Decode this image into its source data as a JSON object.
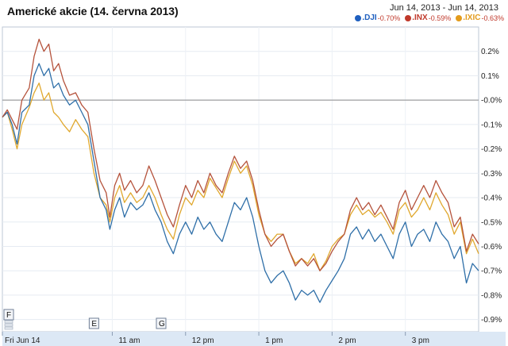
{
  "title": "Americké akcie (14. června 2013)",
  "date_range": "Jun 14, 2013  -  Jun 14, 2013",
  "legend": [
    {
      "symbol": ".DJI",
      "change": "-0.70%",
      "color": "#1f5fbf"
    },
    {
      "symbol": ".INX",
      "change": "-0.59%",
      "color": "#c0392b"
    },
    {
      "symbol": ".IXIC",
      "change": "-0.63%",
      "color": "#e39b1c"
    }
  ],
  "markers": [
    {
      "label": "F",
      "x": 0
    },
    {
      "label": "E",
      "x": 75
    },
    {
      "label": "G",
      "x": 130
    }
  ],
  "chart_data": {
    "type": "line",
    "title": "Americké akcie (14. června 2013)",
    "xlabel": "",
    "ylabel": "",
    "x_unit": "minutes after 9:30 am",
    "xlim": [
      0,
      390
    ],
    "ylim": [
      -0.95,
      0.3
    ],
    "y_ticks": [
      0.2,
      0.1,
      0.0,
      -0.1,
      -0.2,
      -0.3,
      -0.4,
      -0.5,
      -0.6,
      -0.7,
      -0.8,
      -0.9
    ],
    "y_tick_labels": [
      "0.2%",
      "0.1%",
      "-0.0%",
      "-0.1%",
      "-0.2%",
      "-0.3%",
      "-0.4%",
      "-0.5%",
      "-0.6%",
      "-0.7%",
      "-0.8%",
      "-0.9%"
    ],
    "x_ticks": [
      0,
      90,
      150,
      210,
      270,
      330
    ],
    "x_tick_labels": [
      "Fri Jun 14",
      "11 am",
      "12 pm",
      "1 pm",
      "2 pm",
      "3 pm"
    ],
    "y_axis_side": "right",
    "grid": true,
    "legend_position": "top-right",
    "series": [
      {
        "name": ".DJI",
        "color": "#2f6fa8",
        "points": [
          [
            0,
            -0.07
          ],
          [
            4,
            -0.05
          ],
          [
            8,
            -0.1
          ],
          [
            12,
            -0.18
          ],
          [
            16,
            -0.05
          ],
          [
            22,
            -0.02
          ],
          [
            26,
            0.1
          ],
          [
            30,
            0.15
          ],
          [
            34,
            0.1
          ],
          [
            38,
            0.13
          ],
          [
            42,
            0.05
          ],
          [
            46,
            0.07
          ],
          [
            50,
            0.02
          ],
          [
            55,
            -0.02
          ],
          [
            60,
            0.0
          ],
          [
            65,
            -0.05
          ],
          [
            70,
            -0.1
          ],
          [
            75,
            -0.25
          ],
          [
            80,
            -0.4
          ],
          [
            85,
            -0.45
          ],
          [
            88,
            -0.53
          ],
          [
            92,
            -0.45
          ],
          [
            96,
            -0.4
          ],
          [
            100,
            -0.48
          ],
          [
            105,
            -0.42
          ],
          [
            110,
            -0.45
          ],
          [
            115,
            -0.43
          ],
          [
            120,
            -0.38
          ],
          [
            125,
            -0.45
          ],
          [
            130,
            -0.5
          ],
          [
            135,
            -0.58
          ],
          [
            140,
            -0.63
          ],
          [
            145,
            -0.55
          ],
          [
            150,
            -0.5
          ],
          [
            155,
            -0.55
          ],
          [
            160,
            -0.48
          ],
          [
            165,
            -0.53
          ],
          [
            170,
            -0.5
          ],
          [
            175,
            -0.55
          ],
          [
            180,
            -0.58
          ],
          [
            185,
            -0.5
          ],
          [
            190,
            -0.42
          ],
          [
            195,
            -0.45
          ],
          [
            200,
            -0.4
          ],
          [
            205,
            -0.48
          ],
          [
            210,
            -0.6
          ],
          [
            215,
            -0.7
          ],
          [
            220,
            -0.75
          ],
          [
            225,
            -0.72
          ],
          [
            230,
            -0.7
          ],
          [
            235,
            -0.75
          ],
          [
            240,
            -0.82
          ],
          [
            245,
            -0.78
          ],
          [
            250,
            -0.8
          ],
          [
            255,
            -0.78
          ],
          [
            260,
            -0.83
          ],
          [
            265,
            -0.78
          ],
          [
            270,
            -0.74
          ],
          [
            275,
            -0.7
          ],
          [
            280,
            -0.65
          ],
          [
            285,
            -0.55
          ],
          [
            290,
            -0.52
          ],
          [
            295,
            -0.57
          ],
          [
            300,
            -0.53
          ],
          [
            305,
            -0.58
          ],
          [
            310,
            -0.55
          ],
          [
            315,
            -0.6
          ],
          [
            320,
            -0.65
          ],
          [
            325,
            -0.55
          ],
          [
            330,
            -0.5
          ],
          [
            335,
            -0.6
          ],
          [
            340,
            -0.55
          ],
          [
            345,
            -0.53
          ],
          [
            350,
            -0.58
          ],
          [
            355,
            -0.5
          ],
          [
            360,
            -0.55
          ],
          [
            365,
            -0.58
          ],
          [
            370,
            -0.65
          ],
          [
            375,
            -0.6
          ],
          [
            380,
            -0.75
          ],
          [
            385,
            -0.67
          ],
          [
            390,
            -0.7
          ]
        ]
      },
      {
        "name": ".INX",
        "color": "#b5533c",
        "points": [
          [
            0,
            -0.07
          ],
          [
            4,
            -0.04
          ],
          [
            8,
            -0.08
          ],
          [
            12,
            -0.12
          ],
          [
            16,
            0.0
          ],
          [
            22,
            0.05
          ],
          [
            26,
            0.18
          ],
          [
            30,
            0.25
          ],
          [
            34,
            0.2
          ],
          [
            38,
            0.23
          ],
          [
            42,
            0.12
          ],
          [
            46,
            0.15
          ],
          [
            50,
            0.08
          ],
          [
            55,
            0.02
          ],
          [
            60,
            0.03
          ],
          [
            65,
            -0.02
          ],
          [
            70,
            -0.05
          ],
          [
            75,
            -0.2
          ],
          [
            80,
            -0.33
          ],
          [
            85,
            -0.38
          ],
          [
            88,
            -0.48
          ],
          [
            92,
            -0.35
          ],
          [
            96,
            -0.3
          ],
          [
            100,
            -0.37
          ],
          [
            105,
            -0.33
          ],
          [
            110,
            -0.38
          ],
          [
            115,
            -0.35
          ],
          [
            120,
            -0.27
          ],
          [
            125,
            -0.33
          ],
          [
            130,
            -0.4
          ],
          [
            135,
            -0.47
          ],
          [
            140,
            -0.52
          ],
          [
            145,
            -0.43
          ],
          [
            150,
            -0.35
          ],
          [
            155,
            -0.4
          ],
          [
            160,
            -0.33
          ],
          [
            165,
            -0.38
          ],
          [
            170,
            -0.3
          ],
          [
            175,
            -0.35
          ],
          [
            180,
            -0.38
          ],
          [
            185,
            -0.3
          ],
          [
            190,
            -0.23
          ],
          [
            195,
            -0.28
          ],
          [
            200,
            -0.25
          ],
          [
            205,
            -0.33
          ],
          [
            210,
            -0.45
          ],
          [
            215,
            -0.55
          ],
          [
            220,
            -0.6
          ],
          [
            225,
            -0.57
          ],
          [
            230,
            -0.55
          ],
          [
            235,
            -0.62
          ],
          [
            240,
            -0.68
          ],
          [
            245,
            -0.65
          ],
          [
            250,
            -0.68
          ],
          [
            255,
            -0.65
          ],
          [
            260,
            -0.7
          ],
          [
            265,
            -0.67
          ],
          [
            270,
            -0.62
          ],
          [
            275,
            -0.58
          ],
          [
            280,
            -0.55
          ],
          [
            285,
            -0.45
          ],
          [
            290,
            -0.4
          ],
          [
            295,
            -0.45
          ],
          [
            300,
            -0.42
          ],
          [
            305,
            -0.47
          ],
          [
            310,
            -0.43
          ],
          [
            315,
            -0.48
          ],
          [
            320,
            -0.53
          ],
          [
            325,
            -0.42
          ],
          [
            330,
            -0.37
          ],
          [
            335,
            -0.45
          ],
          [
            340,
            -0.4
          ],
          [
            345,
            -0.35
          ],
          [
            350,
            -0.4
          ],
          [
            355,
            -0.33
          ],
          [
            360,
            -0.38
          ],
          [
            365,
            -0.42
          ],
          [
            370,
            -0.52
          ],
          [
            375,
            -0.48
          ],
          [
            380,
            -0.62
          ],
          [
            385,
            -0.55
          ],
          [
            390,
            -0.59
          ]
        ]
      },
      {
        "name": ".IXIC",
        "color": "#e0a82e",
        "points": [
          [
            0,
            -0.07
          ],
          [
            4,
            -0.05
          ],
          [
            8,
            -0.12
          ],
          [
            12,
            -0.2
          ],
          [
            16,
            -0.1
          ],
          [
            22,
            -0.03
          ],
          [
            26,
            0.03
          ],
          [
            30,
            0.07
          ],
          [
            34,
            0.0
          ],
          [
            38,
            0.03
          ],
          [
            42,
            -0.05
          ],
          [
            46,
            -0.07
          ],
          [
            50,
            -0.1
          ],
          [
            55,
            -0.13
          ],
          [
            60,
            -0.08
          ],
          [
            65,
            -0.12
          ],
          [
            70,
            -0.15
          ],
          [
            75,
            -0.3
          ],
          [
            80,
            -0.4
          ],
          [
            85,
            -0.43
          ],
          [
            88,
            -0.5
          ],
          [
            92,
            -0.4
          ],
          [
            96,
            -0.35
          ],
          [
            100,
            -0.42
          ],
          [
            105,
            -0.38
          ],
          [
            110,
            -0.42
          ],
          [
            115,
            -0.4
          ],
          [
            120,
            -0.35
          ],
          [
            125,
            -0.4
          ],
          [
            130,
            -0.47
          ],
          [
            135,
            -0.53
          ],
          [
            140,
            -0.57
          ],
          [
            145,
            -0.47
          ],
          [
            150,
            -0.4
          ],
          [
            155,
            -0.43
          ],
          [
            160,
            -0.37
          ],
          [
            165,
            -0.4
          ],
          [
            170,
            -0.32
          ],
          [
            175,
            -0.36
          ],
          [
            180,
            -0.4
          ],
          [
            185,
            -0.32
          ],
          [
            190,
            -0.25
          ],
          [
            195,
            -0.3
          ],
          [
            200,
            -0.27
          ],
          [
            205,
            -0.35
          ],
          [
            210,
            -0.47
          ],
          [
            215,
            -0.55
          ],
          [
            220,
            -0.58
          ],
          [
            225,
            -0.55
          ],
          [
            230,
            -0.55
          ],
          [
            235,
            -0.62
          ],
          [
            240,
            -0.67
          ],
          [
            245,
            -0.65
          ],
          [
            250,
            -0.67
          ],
          [
            255,
            -0.63
          ],
          [
            260,
            -0.7
          ],
          [
            265,
            -0.66
          ],
          [
            270,
            -0.6
          ],
          [
            275,
            -0.57
          ],
          [
            280,
            -0.55
          ],
          [
            285,
            -0.47
          ],
          [
            290,
            -0.43
          ],
          [
            295,
            -0.47
          ],
          [
            300,
            -0.45
          ],
          [
            305,
            -0.48
          ],
          [
            310,
            -0.46
          ],
          [
            315,
            -0.5
          ],
          [
            320,
            -0.55
          ],
          [
            325,
            -0.45
          ],
          [
            330,
            -0.42
          ],
          [
            335,
            -0.48
          ],
          [
            340,
            -0.45
          ],
          [
            345,
            -0.4
          ],
          [
            350,
            -0.45
          ],
          [
            355,
            -0.38
          ],
          [
            360,
            -0.43
          ],
          [
            365,
            -0.47
          ],
          [
            370,
            -0.55
          ],
          [
            375,
            -0.5
          ],
          [
            380,
            -0.63
          ],
          [
            385,
            -0.57
          ],
          [
            390,
            -0.63
          ]
        ]
      }
    ]
  }
}
